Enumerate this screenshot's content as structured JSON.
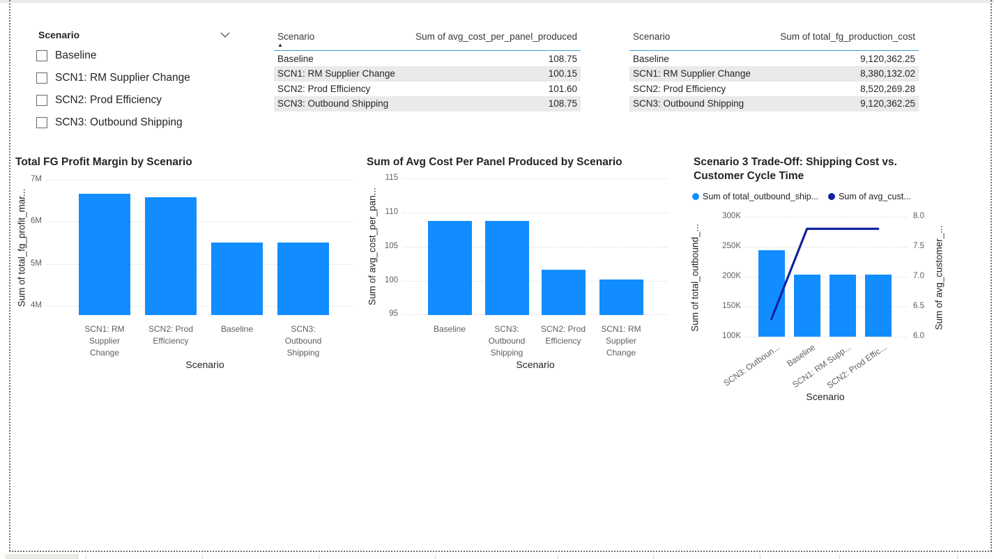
{
  "colors": {
    "bar_blue": "#118DFF",
    "line_navy": "#12239E",
    "text_dark": "#252423",
    "text_gray": "#605E5C",
    "row_alt": "#EAEAEA",
    "header_underline": "#3E9BCD"
  },
  "slicer": {
    "title": "Scenario",
    "items": [
      {
        "label": "Baseline",
        "checked": false
      },
      {
        "label": "SCN1: RM Supplier Change",
        "checked": false
      },
      {
        "label": "SCN2: Prod Efficiency",
        "checked": false
      },
      {
        "label": "SCN3: Outbound Shipping",
        "checked": false
      }
    ]
  },
  "tables": [
    {
      "columns": [
        "Scenario",
        "Sum of avg_cost_per_panel_produced"
      ],
      "sort_indicator": "▲",
      "rows": [
        [
          "Baseline",
          "108.75"
        ],
        [
          "SCN1: RM Supplier Change",
          "100.15"
        ],
        [
          "SCN2: Prod Efficiency",
          "101.60"
        ],
        [
          "SCN3: Outbound Shipping",
          "108.75"
        ]
      ]
    },
    {
      "columns": [
        "Scenario",
        "Sum of total_fg_production_cost"
      ],
      "sort_indicator": "",
      "rows": [
        [
          "Baseline",
          "9,120,362.25"
        ],
        [
          "SCN1: RM Supplier Change",
          "8,380,132.02"
        ],
        [
          "SCN2: Prod Efficiency",
          "8,520,269.28"
        ],
        [
          "SCN3: Outbound Shipping",
          "9,120,362.25"
        ]
      ]
    }
  ],
  "chart_data": [
    {
      "type": "bar",
      "title": "Total FG Profit Margin by Scenario",
      "categories": [
        "SCN1: RM Supplier Change",
        "SCN2: Prod Efficiency",
        "Baseline",
        "SCN3: Outbound Shipping"
      ],
      "category_lines": [
        [
          "SCN1: RM",
          "Supplier",
          "Change"
        ],
        [
          "SCN2: Prod",
          "Efficiency"
        ],
        [
          "Baseline"
        ],
        [
          "SCN3:",
          "Outbound",
          "Shipping"
        ]
      ],
      "values": [
        6670000,
        6590000,
        5500000,
        5500000
      ],
      "xlabel": "Scenario",
      "ylabel": "Sum of total_fg_profit_mar...",
      "ylim": [
        3780000,
        7150000
      ],
      "yticks": [
        4000000,
        5000000,
        6000000,
        7000000
      ],
      "ytick_labels": [
        "4M",
        "5M",
        "6M",
        "7M"
      ],
      "grid": true,
      "legend_position": "none"
    },
    {
      "type": "bar",
      "title": "Sum of Avg Cost Per Panel Produced by Scenario",
      "categories": [
        "Baseline",
        "SCN3: Outbound Shipping",
        "SCN2: Prod Efficiency",
        "SCN1: RM Supplier Change"
      ],
      "category_lines": [
        [
          "Baseline"
        ],
        [
          "SCN3:",
          "Outbound",
          "Shipping"
        ],
        [
          "SCN2: Prod",
          "Efficiency"
        ],
        [
          "SCN1: RM",
          "Supplier",
          "Change"
        ]
      ],
      "values": [
        108.75,
        108.75,
        101.6,
        100.15
      ],
      "xlabel": "Scenario",
      "ylabel": "Sum of avg_cost_per_pan...",
      "ylim": [
        94.9,
        115.7
      ],
      "yticks": [
        95,
        100,
        105,
        110,
        115
      ],
      "ytick_labels": [
        "95",
        "100",
        "105",
        "110",
        "115"
      ],
      "grid": true,
      "legend_position": "none"
    },
    {
      "type": "combo",
      "title": "Scenario 3 Trade-Off: Shipping Cost vs. Customer Cycle Time",
      "title_lines": [
        "Scenario 3 Trade-Off: Shipping Cost vs.",
        "Customer Cycle Time"
      ],
      "legend": [
        {
          "label": "Sum of total_outbound_ship...",
          "color": "#118DFF"
        },
        {
          "label": "Sum of avg_cust...",
          "color": "#12239E"
        }
      ],
      "categories": [
        "SCN3: Outbound Shipping",
        "Baseline",
        "SCN1: RM Supplier Change",
        "SCN2: Prod Efficiency"
      ],
      "category_labels": [
        "SCN3: Outboun...",
        "Baseline",
        "SCN1: RM Supp...",
        "SCN2: Prod Effic..."
      ],
      "series": [
        {
          "name": "Sum of total_outbound_ship...",
          "type": "bar",
          "axis": "left",
          "values": [
            244000,
            204000,
            204000,
            204000
          ]
        },
        {
          "name": "Sum of avg_cust...",
          "type": "line",
          "axis": "right",
          "values": [
            6.3,
            7.8,
            7.8,
            7.8
          ]
        }
      ],
      "xlabel": "Scenario",
      "ylabel_left": "Sum of total_outbound_...",
      "ylabel_right": "Sum of avg_customer_...",
      "ylim_left": [
        100000,
        300000
      ],
      "yticks_left": [
        100000,
        150000,
        200000,
        250000,
        300000
      ],
      "ytick_labels_left": [
        "100K",
        "150K",
        "200K",
        "250K",
        "300K"
      ],
      "ylim_right": [
        6.0,
        8.0
      ],
      "yticks_right": [
        6.0,
        6.5,
        7.0,
        7.5,
        8.0
      ],
      "ytick_labels_right": [
        "6.0",
        "6.5",
        "7.0",
        "7.5",
        "8.0"
      ],
      "grid": true,
      "legend_position": "top"
    }
  ]
}
